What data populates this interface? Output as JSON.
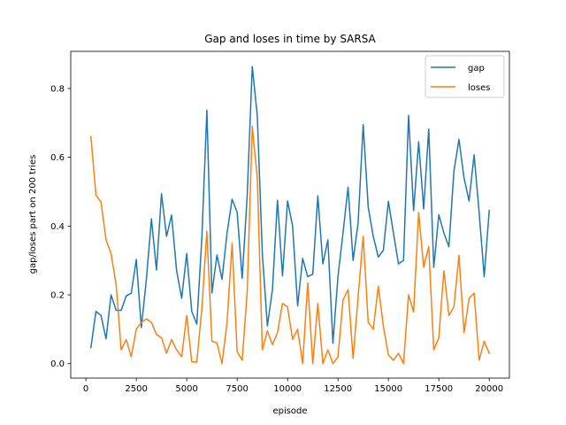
{
  "chart_data": {
    "type": "line",
    "title": "Gap and loses in time by SARSA",
    "xlabel": "episode",
    "ylabel": "gap/loses part on 200 tries",
    "xlim": [
      -750,
      21000
    ],
    "ylim": [
      -0.042,
      0.908
    ],
    "xticks": [
      0,
      2500,
      5000,
      7500,
      10000,
      12500,
      15000,
      17500,
      20000
    ],
    "yticks": [
      0.0,
      0.2,
      0.4,
      0.6,
      0.8
    ],
    "xtick_labels": [
      "0",
      "2500",
      "5000",
      "7500",
      "10000",
      "12500",
      "15000",
      "17500",
      "20000"
    ],
    "ytick_labels": [
      "0.0",
      "0.2",
      "0.4",
      "0.6",
      "0.8"
    ],
    "legend_position": "upper-right",
    "grid": false,
    "x": [
      250,
      500,
      750,
      1000,
      1250,
      1500,
      1750,
      2000,
      2250,
      2500,
      2750,
      3000,
      3250,
      3500,
      3750,
      4000,
      4250,
      4500,
      4750,
      5000,
      5250,
      5500,
      5750,
      6000,
      6250,
      6500,
      6750,
      7000,
      7250,
      7500,
      7750,
      8000,
      8250,
      8500,
      8750,
      9000,
      9250,
      9500,
      9750,
      10000,
      10250,
      10500,
      10750,
      11000,
      11250,
      11500,
      11750,
      12000,
      12250,
      12500,
      12750,
      13000,
      13250,
      13500,
      13750,
      14000,
      14250,
      14500,
      14750,
      15000,
      15250,
      15500,
      15750,
      16000,
      16250,
      16500,
      16750,
      17000,
      17250,
      17500,
      17750,
      18000,
      18250,
      18500,
      18750,
      19000,
      19250,
      19500,
      19750,
      20000
    ],
    "series": [
      {
        "name": "gap",
        "color": "#1f77b4",
        "values": [
          0.047,
          0.152,
          0.14,
          0.072,
          0.2,
          0.155,
          0.155,
          0.197,
          0.205,
          0.303,
          0.105,
          0.245,
          0.421,
          0.272,
          0.494,
          0.37,
          0.432,
          0.27,
          0.19,
          0.32,
          0.152,
          0.115,
          0.365,
          0.737,
          0.205,
          0.316,
          0.245,
          0.38,
          0.478,
          0.44,
          0.248,
          0.49,
          0.864,
          0.72,
          0.32,
          0.11,
          0.215,
          0.475,
          0.255,
          0.473,
          0.4,
          0.168,
          0.306,
          0.253,
          0.26,
          0.488,
          0.29,
          0.36,
          0.059,
          0.254,
          0.38,
          0.513,
          0.3,
          0.41,
          0.695,
          0.455,
          0.37,
          0.31,
          0.33,
          0.472,
          0.38,
          0.29,
          0.3,
          0.722,
          0.445,
          0.645,
          0.45,
          0.682,
          0.28,
          0.433,
          0.38,
          0.34,
          0.56,
          0.652,
          0.54,
          0.473,
          0.607,
          0.44,
          0.253,
          0.445
        ]
      },
      {
        "name": "loses",
        "color": "#ff7f0e",
        "values": [
          0.66,
          0.49,
          0.47,
          0.36,
          0.32,
          0.23,
          0.04,
          0.07,
          0.02,
          0.1,
          0.12,
          0.13,
          0.12,
          0.085,
          0.075,
          0.03,
          0.07,
          0.04,
          0.02,
          0.14,
          0.005,
          0.005,
          0.16,
          0.385,
          0.065,
          0.06,
          0.0,
          0.12,
          0.35,
          0.035,
          0.01,
          0.21,
          0.69,
          0.54,
          0.04,
          0.095,
          0.055,
          0.09,
          0.175,
          0.165,
          0.07,
          0.1,
          0.0,
          0.235,
          0.0,
          0.175,
          0.0,
          0.04,
          0.0,
          0.02,
          0.185,
          0.215,
          0.015,
          0.195,
          0.37,
          0.12,
          0.1,
          0.225,
          0.11,
          0.025,
          0.01,
          0.03,
          0.0,
          0.2,
          0.15,
          0.44,
          0.28,
          0.34,
          0.04,
          0.075,
          0.27,
          0.14,
          0.165,
          0.315,
          0.09,
          0.19,
          0.205,
          0.01,
          0.065,
          0.03
        ]
      }
    ]
  }
}
